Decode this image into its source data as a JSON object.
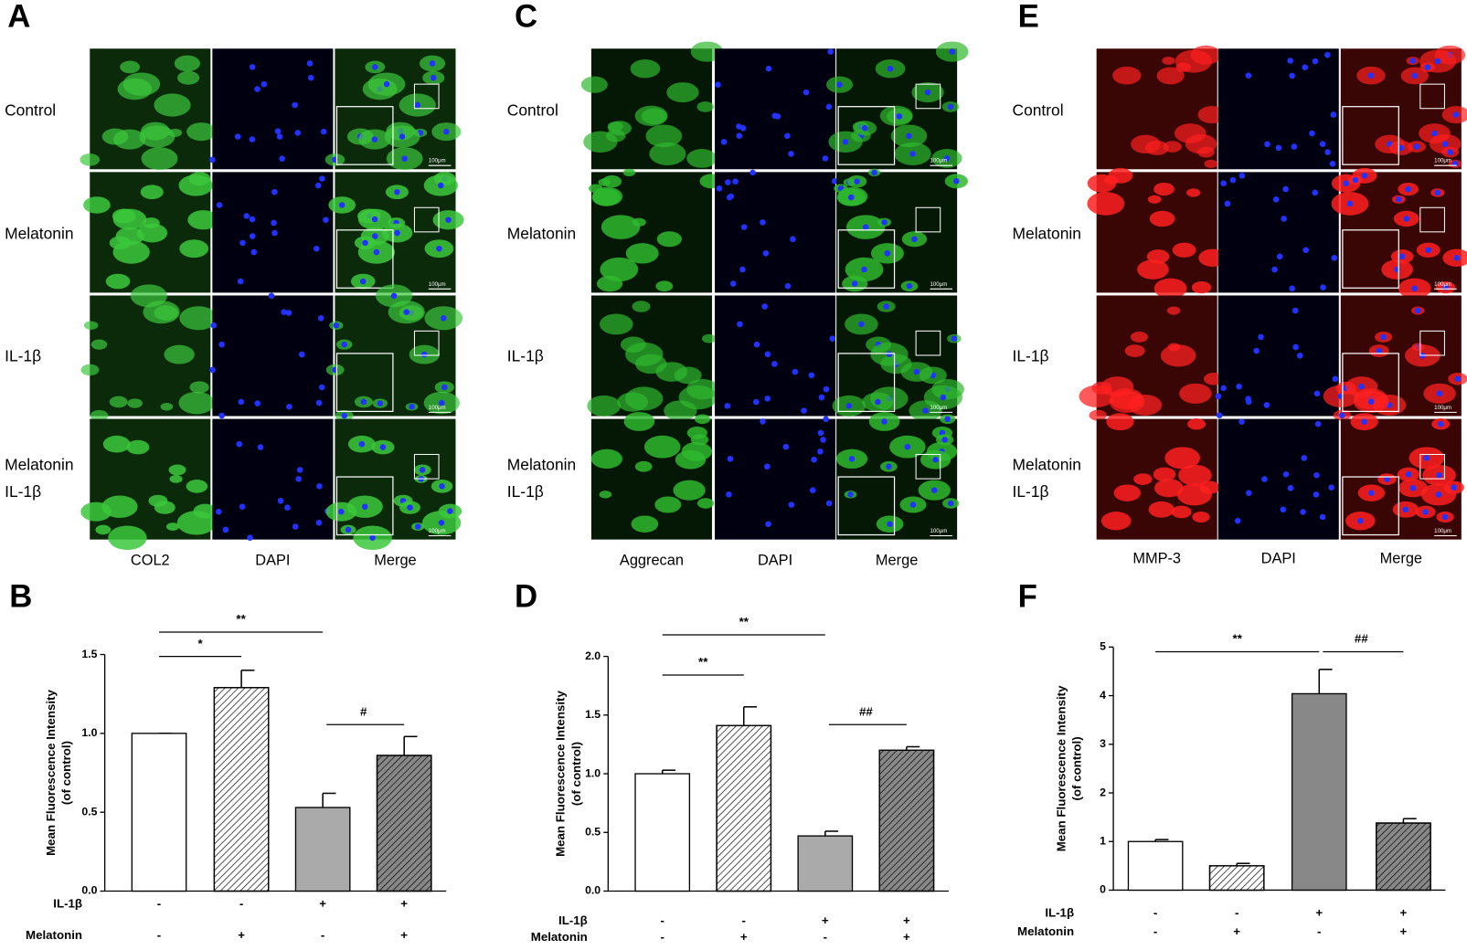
{
  "panels": [
    {
      "label": "A",
      "rows": [
        [
          "Control"
        ],
        [
          "Melatonin"
        ],
        [
          "IL-1β"
        ],
        [
          "Melatonin",
          "IL-1β"
        ]
      ],
      "columns": [
        "COL2",
        "DAPI",
        "Merge"
      ],
      "scale_bar": "100μm"
    },
    {
      "label": "C",
      "rows": [
        [
          "Control"
        ],
        [
          "Melatonin"
        ],
        [
          "IL-1β"
        ],
        [
          "Melatonin",
          "IL-1β"
        ]
      ],
      "columns": [
        "Aggrecan",
        "DAPI",
        "Merge"
      ],
      "scale_bar": "100μm"
    },
    {
      "label": "E",
      "rows": [
        [
          "Control"
        ],
        [
          "Melatonin"
        ],
        [
          "IL-1β"
        ],
        [
          "Melatonin",
          "IL-1β"
        ]
      ],
      "columns": [
        "MMP-3",
        "DAPI",
        "Merge"
      ],
      "scale_bar": "100μm"
    }
  ],
  "chart_data": [
    {
      "type": "bar",
      "label": "B",
      "ylabel": [
        "Mean Fluorescence Intensity",
        "(of control)"
      ],
      "values": [
        1.0,
        1.29,
        0.53,
        0.86
      ],
      "errors": [
        0.0,
        0.11,
        0.09,
        0.12
      ],
      "fills": [
        "#ffffff",
        "#ffffff",
        "#aaaaaa",
        "#888888"
      ],
      "hatch": [
        false,
        true,
        false,
        true
      ],
      "ylim": [
        0,
        1.5
      ],
      "yticks": [
        {
          "value": 0,
          "label": "0.0"
        },
        0.5,
        {
          "value": 1,
          "label": "1.0"
        },
        1.5
      ],
      "conditions": [
        {
          "name": "IL-1β",
          "values": [
            "-",
            "-",
            "+",
            "+"
          ]
        },
        {
          "name": "Melatonin",
          "values": [
            "-",
            "+",
            "-",
            "+"
          ]
        }
      ],
      "significance": [
        {
          "from": 0,
          "to": 2,
          "label": "**"
        },
        {
          "from": 0,
          "to": 1,
          "label": "*"
        },
        {
          "from": 2,
          "to": 3,
          "label": "#"
        }
      ]
    },
    {
      "type": "bar",
      "label": "D",
      "ylabel": [
        "Mean Fluorescence Intensity",
        "(of control)"
      ],
      "values": [
        1.0,
        1.41,
        0.47,
        1.2
      ],
      "errors": [
        0.03,
        0.16,
        0.04,
        0.03
      ],
      "fills": [
        "#ffffff",
        "#ffffff",
        "#aaaaaa",
        "#888888"
      ],
      "hatch": [
        false,
        true,
        false,
        true
      ],
      "ylim": [
        0,
        2
      ],
      "yticks": [
        {
          "value": 0,
          "label": "0.0"
        },
        0.5,
        {
          "value": 1,
          "label": "1.0"
        },
        1.5,
        {
          "value": 2,
          "label": "2.0"
        }
      ],
      "conditions": [
        {
          "name": "IL-1β",
          "values": [
            "-",
            "-",
            "+",
            "+"
          ]
        },
        {
          "name": "Melatonin",
          "values": [
            "-",
            "+",
            "-",
            "+"
          ]
        }
      ],
      "significance": [
        {
          "from": 0,
          "to": 2,
          "label": "**"
        },
        {
          "from": 0,
          "to": 1,
          "label": "**"
        },
        {
          "from": 2,
          "to": 3,
          "label": "##"
        }
      ]
    },
    {
      "type": "bar",
      "label": "F",
      "ylabel": [
        "Mean Fluorescence Intensity",
        "(of control)"
      ],
      "values": [
        1.0,
        0.5,
        4.04,
        1.38
      ],
      "errors": [
        0.04,
        0.05,
        0.5,
        0.09
      ],
      "fills": [
        "#ffffff",
        "#ffffff",
        "#888888",
        "#888888"
      ],
      "hatch": [
        false,
        true,
        false,
        true
      ],
      "ylim": [
        0,
        5
      ],
      "yticks": [
        0,
        1,
        2,
        3,
        4,
        5
      ],
      "conditions": [
        {
          "name": "IL-1β",
          "values": [
            "-",
            "-",
            "+",
            "+"
          ]
        },
        {
          "name": "Melatonin",
          "values": [
            "-",
            "+",
            "-",
            "+"
          ]
        }
      ],
      "significance": [
        {
          "from": 0,
          "to": 2,
          "label": "**"
        },
        {
          "from": 2,
          "to": 3,
          "label": "##"
        }
      ]
    }
  ]
}
